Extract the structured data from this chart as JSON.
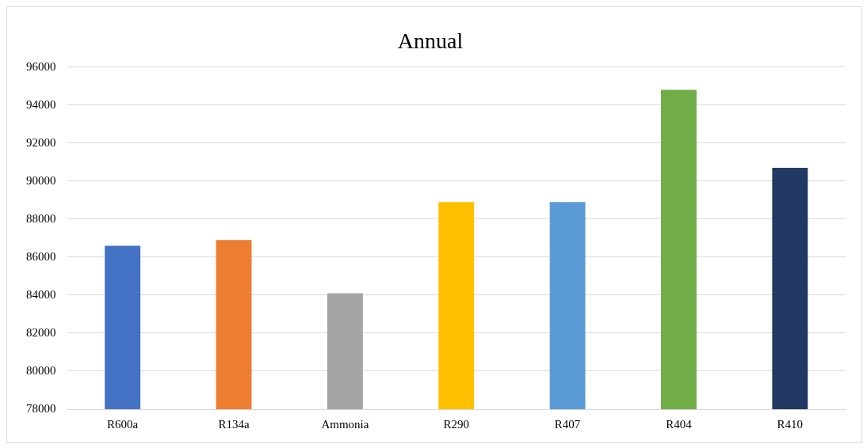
{
  "chart_data": {
    "type": "bar",
    "title": "Annual",
    "categories": [
      "R600a",
      "R134a",
      "Ammonia",
      "R290",
      "R407",
      "R404",
      "R410"
    ],
    "values": [
      86600,
      86900,
      84100,
      88900,
      88900,
      94800,
      90700
    ],
    "colors": [
      "#4472c4",
      "#ed7d31",
      "#a5a5a5",
      "#ffc000",
      "#5b9bd5",
      "#70ad47",
      "#223963"
    ],
    "ylim": [
      78000,
      96000
    ],
    "yticks": [
      78000,
      80000,
      82000,
      84000,
      86000,
      88000,
      90000,
      92000,
      94000,
      96000
    ],
    "grid": "y",
    "legend": false
  }
}
